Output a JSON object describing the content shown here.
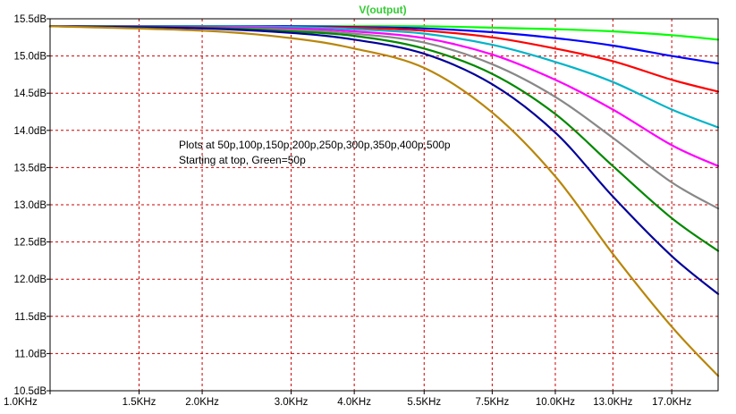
{
  "chart_data": {
    "type": "line",
    "title": "V(output)",
    "title_color": "#33cc33",
    "xlabel": "",
    "ylabel": "",
    "x_scale": "log",
    "x_unit": "Hz",
    "y_unit": "dB",
    "xlim": [
      1000,
      21000
    ],
    "ylim": [
      10.5,
      15.5
    ],
    "grid": true,
    "grid_color": "#cc0000",
    "x_ticks": [
      {
        "value": 1000,
        "label": "1.0KHz"
      },
      {
        "value": 1500,
        "label": "1.5KHz"
      },
      {
        "value": 2000,
        "label": "2.0KHz"
      },
      {
        "value": 3000,
        "label": "3.0KHz"
      },
      {
        "value": 4000,
        "label": "4.0KHz"
      },
      {
        "value": 5500,
        "label": "5.5KHz"
      },
      {
        "value": 7500,
        "label": "7.5KHz"
      },
      {
        "value": 10000,
        "label": "10.0KHz"
      },
      {
        "value": 13000,
        "label": "13.0KHz"
      },
      {
        "value": 17000,
        "label": "17.0KHz"
      }
    ],
    "y_ticks": [
      {
        "value": 15.5,
        "label": "15.5dB"
      },
      {
        "value": 15.0,
        "label": "15.0dB"
      },
      {
        "value": 14.5,
        "label": "14.5dB"
      },
      {
        "value": 14.0,
        "label": "14.0dB"
      },
      {
        "value": 13.5,
        "label": "13.5dB"
      },
      {
        "value": 13.0,
        "label": "13.0dB"
      },
      {
        "value": 12.5,
        "label": "12.5dB"
      },
      {
        "value": 12.0,
        "label": "12.0dB"
      },
      {
        "value": 11.5,
        "label": "11.5dB"
      },
      {
        "value": 11.0,
        "label": "11.0dB"
      },
      {
        "value": 10.5,
        "label": "10.5dB"
      }
    ],
    "series": [
      {
        "color": "#00ff00",
        "x": [
          1000,
          2000,
          3000,
          4000,
          5500,
          7500,
          10000,
          13000,
          17000,
          21000
        ],
        "y": [
          15.4,
          15.4,
          15.4,
          15.4,
          15.4,
          15.38,
          15.36,
          15.33,
          15.28,
          15.22
        ]
      },
      {
        "color": "#0000ff",
        "x": [
          1000,
          2000,
          3000,
          4000,
          5500,
          7500,
          10000,
          13000,
          17000,
          21000
        ],
        "y": [
          15.4,
          15.4,
          15.4,
          15.39,
          15.37,
          15.32,
          15.24,
          15.14,
          15.0,
          14.9
        ]
      },
      {
        "color": "#ff0000",
        "x": [
          1000,
          2000,
          3000,
          4000,
          5500,
          7500,
          10000,
          13000,
          17000,
          21000
        ],
        "y": [
          15.4,
          15.4,
          15.39,
          15.38,
          15.34,
          15.25,
          15.1,
          14.93,
          14.68,
          14.52
        ]
      },
      {
        "color": "#00b4c8",
        "x": [
          1000,
          2000,
          3000,
          4000,
          5500,
          7500,
          10000,
          13000,
          17000,
          21000
        ],
        "y": [
          15.4,
          15.4,
          15.39,
          15.36,
          15.3,
          15.15,
          14.92,
          14.65,
          14.28,
          14.04
        ]
      },
      {
        "color": "#ff00ff",
        "x": [
          1000,
          2000,
          3000,
          4000,
          5500,
          7500,
          10000,
          13000,
          17000,
          21000
        ],
        "y": [
          15.4,
          15.39,
          15.37,
          15.33,
          15.24,
          15.02,
          14.68,
          14.28,
          13.8,
          13.52
        ]
      },
      {
        "color": "#888888",
        "x": [
          1000,
          2000,
          3000,
          4000,
          5500,
          7500,
          10000,
          13000,
          17000,
          21000
        ],
        "y": [
          15.4,
          15.38,
          15.35,
          15.3,
          15.18,
          14.89,
          14.45,
          13.9,
          13.3,
          12.95
        ]
      },
      {
        "color": "#008800",
        "x": [
          1000,
          2000,
          3000,
          4000,
          5500,
          7500,
          10000,
          13000,
          17000,
          21000
        ],
        "y": [
          15.4,
          15.38,
          15.33,
          15.27,
          15.1,
          14.76,
          14.22,
          13.52,
          12.82,
          12.38
        ]
      },
      {
        "color": "#000099",
        "x": [
          1000,
          2000,
          3000,
          4000,
          5500,
          7500,
          10000,
          13000,
          17000,
          21000
        ],
        "y": [
          15.4,
          15.37,
          15.31,
          15.22,
          15.03,
          14.62,
          13.97,
          13.11,
          12.31,
          11.8
        ]
      },
      {
        "color": "#b8860b",
        "x": [
          1000,
          2000,
          3000,
          4000,
          5500,
          7500,
          10000,
          13000,
          17000,
          21000
        ],
        "y": [
          15.4,
          15.34,
          15.24,
          15.1,
          14.84,
          14.24,
          13.38,
          12.34,
          11.36,
          10.7
        ]
      }
    ],
    "annotations": [
      "Plots at 50p,100p,150p,200p,250p,300p,350p,400p,500p",
      "Starting at top, Green=50p"
    ]
  }
}
